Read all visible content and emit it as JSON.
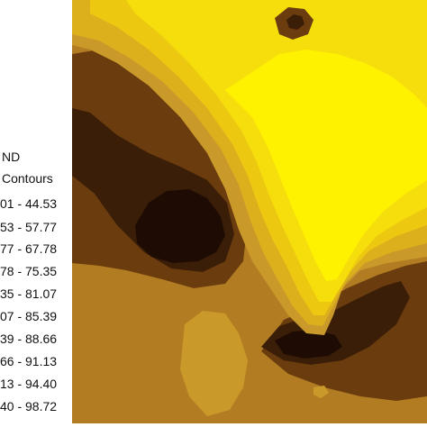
{
  "legend": {
    "title_line1": "ND",
    "title_line2": "Contours",
    "ranges": [
      "01 - 44.53",
      "53 - 57.77",
      "77 - 67.78",
      "78 - 75.35",
      "35 - 81.07",
      "07 - 85.39",
      "39 - 88.66",
      "66 - 91.13",
      "13 - 94.40",
      "40 - 98.72"
    ]
  },
  "colors": {
    "class_1": "#1e0c04",
    "class_2": "#3b1e08",
    "class_3": "#6b3c0e",
    "class_4": "#8e5a17",
    "class_5": "#b27d22",
    "class_6": "#c99a2a",
    "class_7": "#dcb01c",
    "class_8": "#ecc811",
    "class_9": "#f6dd0c",
    "class_10": "#fff200"
  }
}
